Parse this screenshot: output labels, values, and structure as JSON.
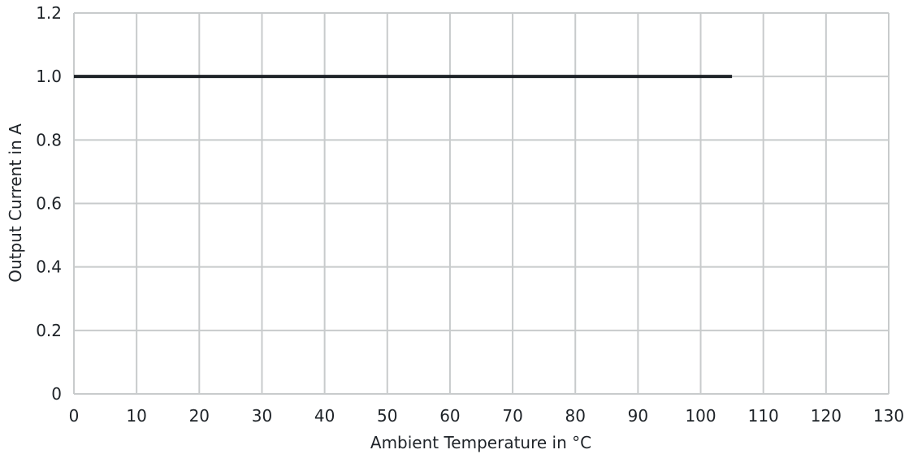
{
  "chart_data": {
    "type": "line",
    "title": "",
    "xlabel": "Ambient Temperature in °C",
    "ylabel": "Output Current in A",
    "xlim": [
      0,
      130
    ],
    "ylim": [
      0,
      1.2
    ],
    "x_ticks": [
      0,
      10,
      20,
      30,
      40,
      50,
      60,
      70,
      80,
      90,
      100,
      110,
      120,
      130
    ],
    "y_ticks": [
      0,
      0.2,
      0.4,
      0.6,
      0.8,
      1.0,
      1.2
    ],
    "x_tick_labels": [
      "0",
      "10",
      "20",
      "30",
      "40",
      "50",
      "60",
      "70",
      "80",
      "90",
      "100",
      "110",
      "120",
      "130"
    ],
    "y_tick_labels": [
      "0",
      "0.2",
      "0.4",
      "0.6",
      "0.8",
      "1.0",
      "1.2"
    ],
    "grid": true,
    "legend": "none",
    "series": [
      {
        "x": [
          0,
          105
        ],
        "y": [
          1.0,
          1.0
        ],
        "color": "#1e2328"
      }
    ]
  }
}
